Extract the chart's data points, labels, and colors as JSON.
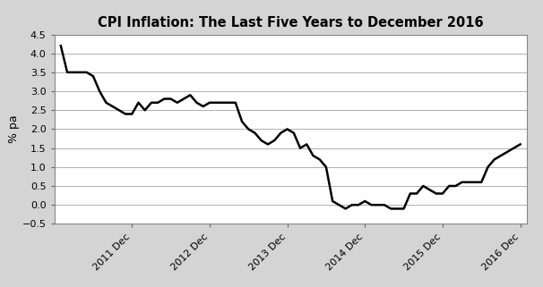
{
  "title": "CPI Inflation: The Last Five Years to December 2016",
  "ylabel": "% pa",
  "yticks": [
    -0.5,
    0.0,
    0.5,
    1.0,
    1.5,
    2.0,
    2.5,
    3.0,
    3.5,
    4.0,
    4.5
  ],
  "ylim": [
    -0.5,
    4.5
  ],
  "xtick_labels": [
    "2011 Dec",
    "2012 Dec",
    "2013 Dec",
    "2014 Dec",
    "2015 Dec",
    "2016 Dec"
  ],
  "line_color": "#000000",
  "line_width": 1.8,
  "background_color": "#ffffff",
  "outer_background": "#d4d4d4",
  "grid_color": "#b0b0b0",
  "values": [
    4.2,
    3.5,
    3.5,
    3.5,
    3.5,
    3.4,
    3.0,
    2.7,
    2.6,
    2.5,
    2.4,
    2.4,
    2.7,
    2.5,
    2.7,
    2.7,
    2.8,
    2.8,
    2.7,
    2.8,
    2.9,
    2.7,
    2.6,
    2.7,
    2.7,
    2.7,
    2.7,
    2.7,
    2.2,
    2.0,
    1.9,
    1.7,
    1.6,
    1.7,
    1.9,
    2.0,
    1.9,
    1.5,
    1.6,
    1.3,
    1.2,
    1.0,
    0.1,
    0.0,
    -0.1,
    0.0,
    0.0,
    0.1,
    0.0,
    0.0,
    0.0,
    -0.1,
    -0.1,
    -0.1,
    0.3,
    0.3,
    0.5,
    0.4,
    0.3,
    0.3,
    0.5,
    0.5,
    0.6,
    0.6,
    0.6,
    0.6,
    1.0,
    1.2,
    1.3,
    1.4,
    1.5,
    1.6
  ],
  "n_points": 72,
  "xtick_positions": [
    11,
    23,
    35,
    47,
    59,
    71
  ]
}
